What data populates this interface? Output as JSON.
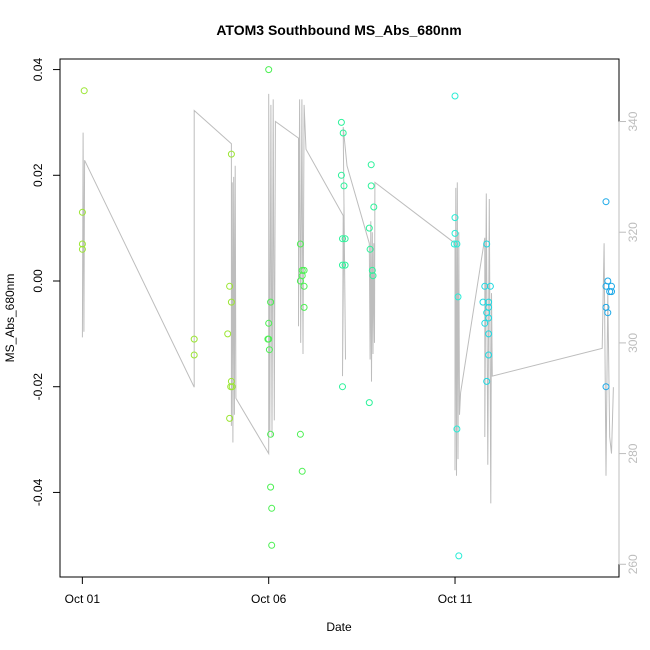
{
  "chart_data": {
    "type": "scatter",
    "title": "ATOM3 Southbound MS_Abs_680nm",
    "xlabel": "Date",
    "ylabel": "MS_Abs_680nm",
    "x_ticks": [
      {
        "day": 0,
        "label": "Oct 01"
      },
      {
        "day": 5,
        "label": "Oct 06"
      },
      {
        "day": 10,
        "label": "Oct 11"
      }
    ],
    "xlim": [
      -0.6,
      14.4
    ],
    "ylim": [
      -0.056,
      0.042
    ],
    "y_ticks": [
      {
        "value": -0.04,
        "label": "-0.04"
      },
      {
        "value": -0.02,
        "label": "-0.02"
      },
      {
        "value": 0.0,
        "label": "0.00"
      },
      {
        "value": 0.02,
        "label": "0.02"
      },
      {
        "value": 0.04,
        "label": "0.04"
      }
    ],
    "y2lim": [
      257.7,
      351.3
    ],
    "y2_ticks": [
      {
        "value": 260,
        "label": "260"
      },
      {
        "value": 280,
        "label": "280"
      },
      {
        "value": 300,
        "label": "300"
      },
      {
        "value": 320,
        "label": "320"
      },
      {
        "value": 340,
        "label": "340"
      }
    ],
    "point_colors": [
      "#9be633",
      "#4cf053",
      "#2cf29a",
      "#28ecd6",
      "#1fd8e0",
      "#1aa8e8"
    ],
    "line_color": "#bdbdbd",
    "axis2_color": "#bdbdbd",
    "points": [
      [
        0.05,
        0.036,
        0
      ],
      [
        0.0,
        0.013,
        0
      ],
      [
        0.0,
        0.007,
        0
      ],
      [
        0.0,
        0.006,
        0
      ],
      [
        3.0,
        -0.011,
        0
      ],
      [
        3.0,
        -0.014,
        0
      ],
      [
        3.9,
        -0.01,
        0
      ],
      [
        4.0,
        0.024,
        0
      ],
      [
        3.95,
        -0.001,
        0
      ],
      [
        4.0,
        -0.004,
        0
      ],
      [
        4.0,
        -0.019,
        0
      ],
      [
        3.98,
        -0.02,
        0
      ],
      [
        4.02,
        -0.02,
        0
      ],
      [
        3.95,
        -0.026,
        0
      ],
      [
        5.0,
        0.04,
        1
      ],
      [
        5.05,
        -0.004,
        1
      ],
      [
        5.0,
        -0.008,
        1
      ],
      [
        4.98,
        -0.011,
        1
      ],
      [
        5.0,
        -0.011,
        1
      ],
      [
        5.02,
        -0.013,
        1
      ],
      [
        5.05,
        -0.029,
        1
      ],
      [
        5.05,
        -0.039,
        1
      ],
      [
        5.08,
        -0.043,
        1
      ],
      [
        5.08,
        -0.05,
        1
      ],
      [
        5.85,
        0.007,
        1
      ],
      [
        5.9,
        0.002,
        1
      ],
      [
        5.95,
        0.002,
        1
      ],
      [
        5.9,
        0.001,
        1
      ],
      [
        5.85,
        0.0,
        1
      ],
      [
        5.95,
        -0.001,
        1
      ],
      [
        5.95,
        -0.005,
        1
      ],
      [
        5.85,
        -0.029,
        1
      ],
      [
        5.9,
        -0.036,
        1
      ],
      [
        6.95,
        0.03,
        2
      ],
      [
        7.0,
        0.028,
        2
      ],
      [
        6.95,
        0.02,
        2
      ],
      [
        7.02,
        0.018,
        2
      ],
      [
        6.98,
        0.008,
        2
      ],
      [
        7.05,
        0.008,
        2
      ],
      [
        6.98,
        0.003,
        2
      ],
      [
        7.05,
        0.003,
        2
      ],
      [
        6.98,
        -0.02,
        2
      ],
      [
        7.75,
        0.022,
        2
      ],
      [
        7.75,
        0.018,
        2
      ],
      [
        7.82,
        0.014,
        2
      ],
      [
        7.7,
        0.01,
        2
      ],
      [
        7.72,
        0.006,
        2
      ],
      [
        7.78,
        0.002,
        2
      ],
      [
        7.8,
        0.001,
        2
      ],
      [
        7.7,
        -0.023,
        2
      ],
      [
        10.0,
        0.035,
        3
      ],
      [
        10.0,
        0.012,
        3
      ],
      [
        10.0,
        0.009,
        3
      ],
      [
        9.98,
        0.007,
        3
      ],
      [
        10.05,
        0.007,
        3
      ],
      [
        10.08,
        -0.003,
        3
      ],
      [
        10.05,
        -0.028,
        3
      ],
      [
        10.1,
        -0.052,
        3
      ],
      [
        10.85,
        0.007,
        4
      ],
      [
        10.8,
        -0.001,
        4
      ],
      [
        10.95,
        -0.001,
        4
      ],
      [
        10.75,
        -0.004,
        4
      ],
      [
        10.9,
        -0.004,
        4
      ],
      [
        10.9,
        -0.005,
        4
      ],
      [
        10.85,
        -0.006,
        4
      ],
      [
        10.9,
        -0.007,
        4
      ],
      [
        10.8,
        -0.008,
        4
      ],
      [
        10.9,
        -0.01,
        4
      ],
      [
        10.9,
        -0.014,
        4
      ],
      [
        10.85,
        -0.019,
        4
      ],
      [
        14.05,
        0.015,
        5
      ],
      [
        14.1,
        0.0,
        5
      ],
      [
        14.05,
        -0.001,
        5
      ],
      [
        14.2,
        -0.001,
        5
      ],
      [
        14.15,
        -0.002,
        5
      ],
      [
        14.2,
        -0.002,
        5
      ],
      [
        14.05,
        -0.005,
        5
      ],
      [
        14.1,
        -0.006,
        5
      ],
      [
        14.05,
        -0.02,
        5
      ]
    ],
    "line_series": {
      "name": "",
      "points": [
        [
          0.0,
          301
        ],
        [
          0.02,
          338
        ],
        [
          0.04,
          302
        ],
        [
          0.06,
          333
        ],
        [
          3.0,
          292
        ],
        [
          3.0,
          342
        ],
        [
          4.0,
          336
        ],
        [
          4.0,
          285
        ],
        [
          4.02,
          329
        ],
        [
          4.04,
          282
        ],
        [
          4.06,
          330
        ],
        [
          4.08,
          287
        ],
        [
          4.1,
          332
        ],
        [
          4.12,
          290
        ],
        [
          5.0,
          280
        ],
        [
          5.0,
          345
        ],
        [
          5.03,
          284
        ],
        [
          5.06,
          343
        ],
        [
          5.09,
          283
        ],
        [
          5.12,
          344
        ],
        [
          5.15,
          286
        ],
        [
          5.18,
          340
        ],
        [
          5.8,
          337
        ],
        [
          5.8,
          303
        ],
        [
          5.83,
          344
        ],
        [
          5.86,
          300
        ],
        [
          5.89,
          344
        ],
        [
          5.92,
          298
        ],
        [
          5.95,
          343
        ],
        [
          6.0,
          335
        ],
        [
          7.0,
          323
        ],
        [
          6.98,
          294
        ],
        [
          7.02,
          325
        ],
        [
          7.06,
          297
        ],
        [
          7.0,
          339
        ],
        [
          7.1,
          332
        ],
        [
          7.7,
          318
        ],
        [
          7.72,
          297
        ],
        [
          7.74,
          322
        ],
        [
          7.76,
          293
        ],
        [
          7.78,
          320
        ],
        [
          7.8,
          298
        ],
        [
          7.82,
          318
        ],
        [
          7.84,
          300
        ],
        [
          7.85,
          329
        ],
        [
          10.0,
          318
        ],
        [
          10.0,
          277
        ],
        [
          10.02,
          328
        ],
        [
          10.04,
          276
        ],
        [
          10.06,
          329
        ],
        [
          10.08,
          279
        ],
        [
          10.1,
          320
        ],
        [
          10.12,
          287
        ],
        [
          10.15,
          291
        ],
        [
          10.8,
          319
        ],
        [
          10.8,
          283
        ],
        [
          10.84,
          327
        ],
        [
          10.88,
          278
        ],
        [
          10.92,
          326
        ],
        [
          10.96,
          271
        ],
        [
          10.98,
          309
        ],
        [
          11.0,
          294
        ],
        [
          13.95,
          299
        ],
        [
          14.0,
          318
        ],
        [
          14.05,
          276
        ],
        [
          14.1,
          309
        ],
        [
          14.15,
          283
        ],
        [
          14.2,
          280
        ],
        [
          14.25,
          292
        ]
      ]
    }
  }
}
